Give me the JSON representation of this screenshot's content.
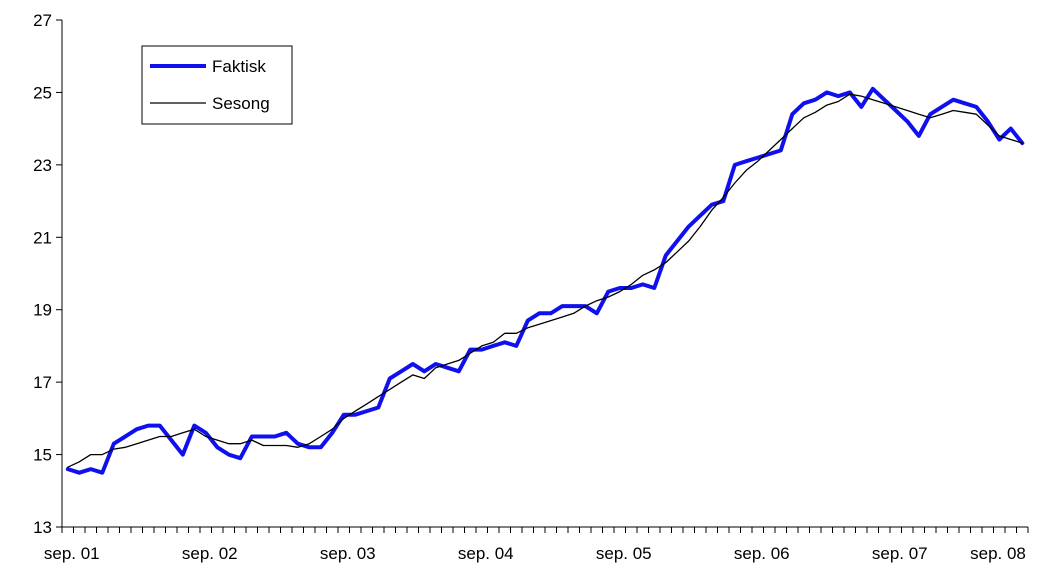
{
  "chart_data": {
    "type": "line",
    "title": "",
    "xlabel": "",
    "ylabel": "",
    "ylim": [
      13,
      27
    ],
    "yticks": [
      "13",
      "15",
      "17",
      "19",
      "21",
      "23",
      "25",
      "27"
    ],
    "x_tick_labels": [
      "sep. 01",
      "sep. 02",
      "sep. 03",
      "sep. 04",
      "sep. 05",
      "sep. 06",
      "sep. 07",
      "sep. 08"
    ],
    "x_start_label": "sep. 01",
    "grid": false,
    "legend_position": "top-left",
    "series": [
      {
        "name": "Faktisk",
        "color": "#1010EE",
        "values": [
          14.6,
          14.5,
          14.6,
          14.5,
          15.3,
          15.5,
          15.7,
          15.8,
          15.8,
          15.4,
          15.0,
          15.8,
          15.6,
          15.2,
          15.0,
          14.9,
          15.5,
          15.5,
          15.5,
          15.6,
          15.3,
          15.2,
          15.2,
          15.6,
          16.1,
          16.1,
          16.2,
          16.3,
          17.1,
          17.3,
          17.5,
          17.3,
          17.5,
          17.4,
          17.3,
          17.9,
          17.9,
          18.0,
          18.1,
          18.0,
          18.7,
          18.9,
          18.9,
          19.1,
          19.1,
          19.1,
          18.9,
          19.5,
          19.6,
          19.6,
          19.7,
          19.6,
          20.5,
          20.9,
          21.3,
          21.6,
          21.9,
          22.0,
          23.0,
          23.1,
          23.2,
          23.3,
          23.4,
          24.4,
          24.7,
          24.8,
          25.0,
          24.9,
          25.0,
          24.6,
          25.1,
          24.8,
          24.5,
          24.2,
          23.8,
          24.4,
          24.6,
          24.8,
          24.7,
          24.6,
          24.2,
          23.7,
          24.0,
          23.6
        ]
      },
      {
        "name": "Sesong",
        "color": "#000000",
        "values": [
          14.65,
          14.8,
          15.0,
          15.0,
          15.15,
          15.2,
          15.3,
          15.4,
          15.5,
          15.5,
          15.6,
          15.7,
          15.5,
          15.4,
          15.3,
          15.3,
          15.4,
          15.25,
          15.25,
          15.25,
          15.2,
          15.3,
          15.5,
          15.7,
          16.0,
          16.2,
          16.4,
          16.6,
          16.8,
          17.0,
          17.2,
          17.1,
          17.4,
          17.5,
          17.6,
          17.8,
          18.0,
          18.1,
          18.35,
          18.35,
          18.5,
          18.6,
          18.7,
          18.8,
          18.9,
          19.1,
          19.25,
          19.35,
          19.5,
          19.7,
          19.95,
          20.1,
          20.3,
          20.6,
          20.9,
          21.3,
          21.75,
          22.1,
          22.5,
          22.85,
          23.1,
          23.4,
          23.7,
          24.0,
          24.3,
          24.45,
          24.65,
          24.75,
          24.95,
          24.9,
          24.8,
          24.7,
          24.6,
          24.5,
          24.4,
          24.3,
          24.4,
          24.5,
          24.45,
          24.4,
          24.1,
          23.8,
          23.7,
          23.6
        ]
      }
    ]
  }
}
